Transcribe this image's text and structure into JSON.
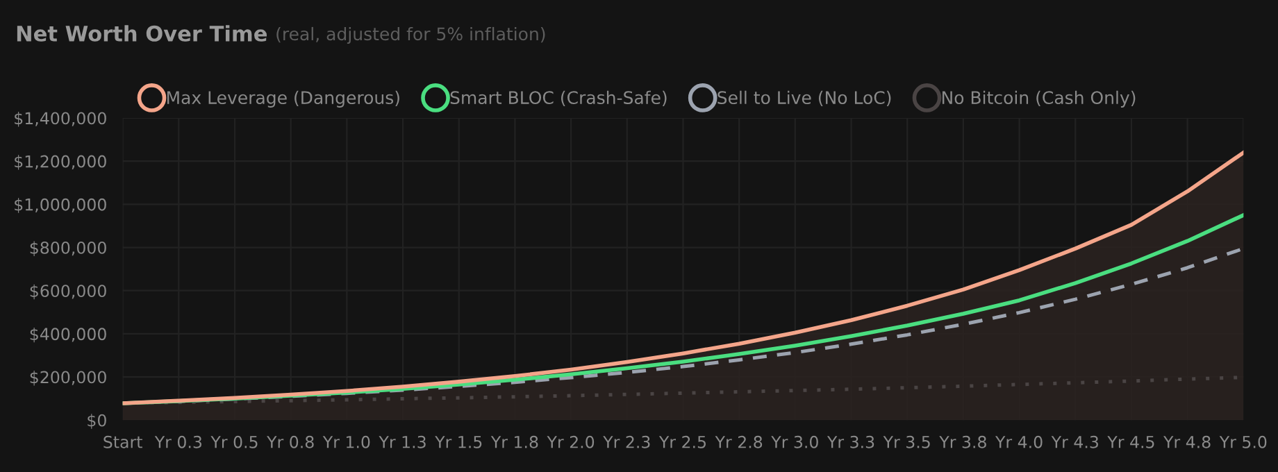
{
  "chart_data": {
    "type": "line",
    "title": "Net Worth Over Time",
    "subtitle": "(real, adjusted for 5% inflation)",
    "categories": [
      "Start",
      "Yr 0.3",
      "Yr 0.5",
      "Yr 0.8",
      "Yr 1.0",
      "Yr 1.3",
      "Yr 1.5",
      "Yr 1.8",
      "Yr 2.0",
      "Yr 2.3",
      "Yr 2.5",
      "Yr 2.8",
      "Yr 3.0",
      "Yr 3.3",
      "Yr 3.5",
      "Yr 3.8",
      "Yr 4.0",
      "Yr 4.3",
      "Yr 4.5",
      "Yr 4.8",
      "Yr 5.0"
    ],
    "series": [
      {
        "name": "Max Leverage (Dangerous)",
        "type": "area",
        "color": "#f4a58a",
        "line_style": "solid",
        "values": [
          78000,
          90000,
          103000,
          118000,
          135000,
          155000,
          178000,
          204000,
          234000,
          269000,
          309000,
          354000,
          405000,
          463000,
          530000,
          605000,
          695000,
          795000,
          905000,
          1060000,
          1240000
        ]
      },
      {
        "name": "Smart BLOC (Crash-Safe)",
        "color": "#4ade80",
        "line_style": "solid",
        "values": [
          78000,
          88000,
          100000,
          113000,
          128000,
          145000,
          165000,
          187000,
          212000,
          240000,
          271000,
          306000,
          345000,
          389000,
          438000,
          493000,
          555000,
          635000,
          726000,
          830000,
          950000
        ]
      },
      {
        "name": "Sell to Live (No LoC)",
        "color": "#9ca3af",
        "line_style": "dashed",
        "values": [
          78000,
          87000,
          98000,
          110000,
          124000,
          139000,
          156000,
          175000,
          197000,
          221000,
          248000,
          279000,
          313000,
          352000,
          395000,
          444000,
          498000,
          560000,
          629000,
          706000,
          795000
        ]
      },
      {
        "name": "No Bitcoin (Cash Only)",
        "color": "#4a4444",
        "line_style": "dotted",
        "values": [
          78000,
          82000,
          86000,
          90000,
          94000,
          99000,
          103000,
          108000,
          113000,
          119000,
          125000,
          131000,
          137000,
          143000,
          150000,
          157000,
          165000,
          173000,
          181000,
          190000,
          198000
        ]
      }
    ],
    "ylim": [
      0,
      1400000
    ],
    "yticks": [
      {
        "value": 0,
        "label": "$0"
      },
      {
        "value": 200000,
        "label": "$200,000"
      },
      {
        "value": 400000,
        "label": "$400,000"
      },
      {
        "value": 600000,
        "label": "$600,000"
      },
      {
        "value": 800000,
        "label": "$800,000"
      },
      {
        "value": 1000000,
        "label": "$1,000,000"
      },
      {
        "value": 1200000,
        "label": "$1,200,000"
      },
      {
        "value": 1400000,
        "label": "$1,400,000"
      }
    ],
    "grid": true,
    "legend": "top",
    "marker": "none"
  }
}
